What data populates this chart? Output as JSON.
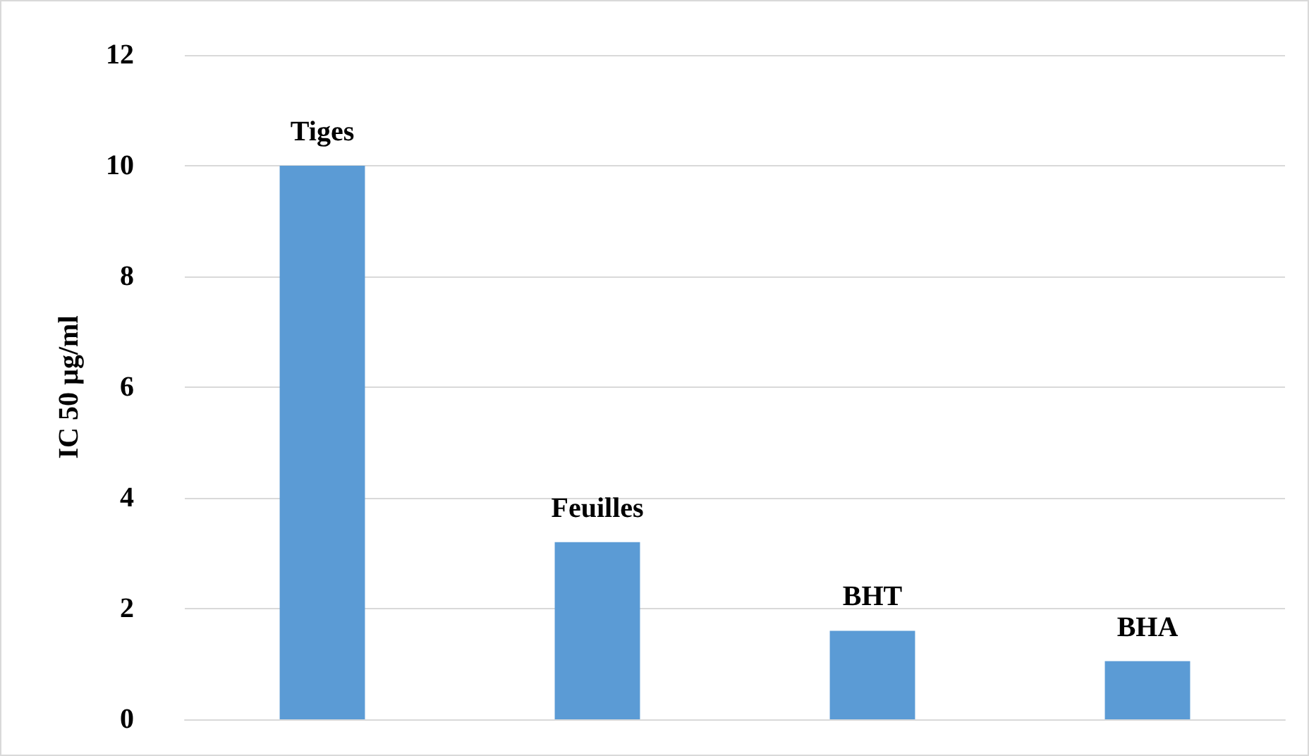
{
  "chart_data": {
    "type": "bar",
    "ylabel": "IC 50 µg/ml",
    "categories": [
      "Tiges",
      "Feuilles",
      "BHT",
      "BHA"
    ],
    "values": [
      10,
      3.2,
      1.6,
      1.05
    ],
    "color": "#5b9bd5",
    "ylim": [
      0,
      12
    ],
    "yticks": [
      0,
      2,
      4,
      6,
      8,
      10,
      12
    ],
    "grid": "y",
    "tick_labels": "y"
  }
}
